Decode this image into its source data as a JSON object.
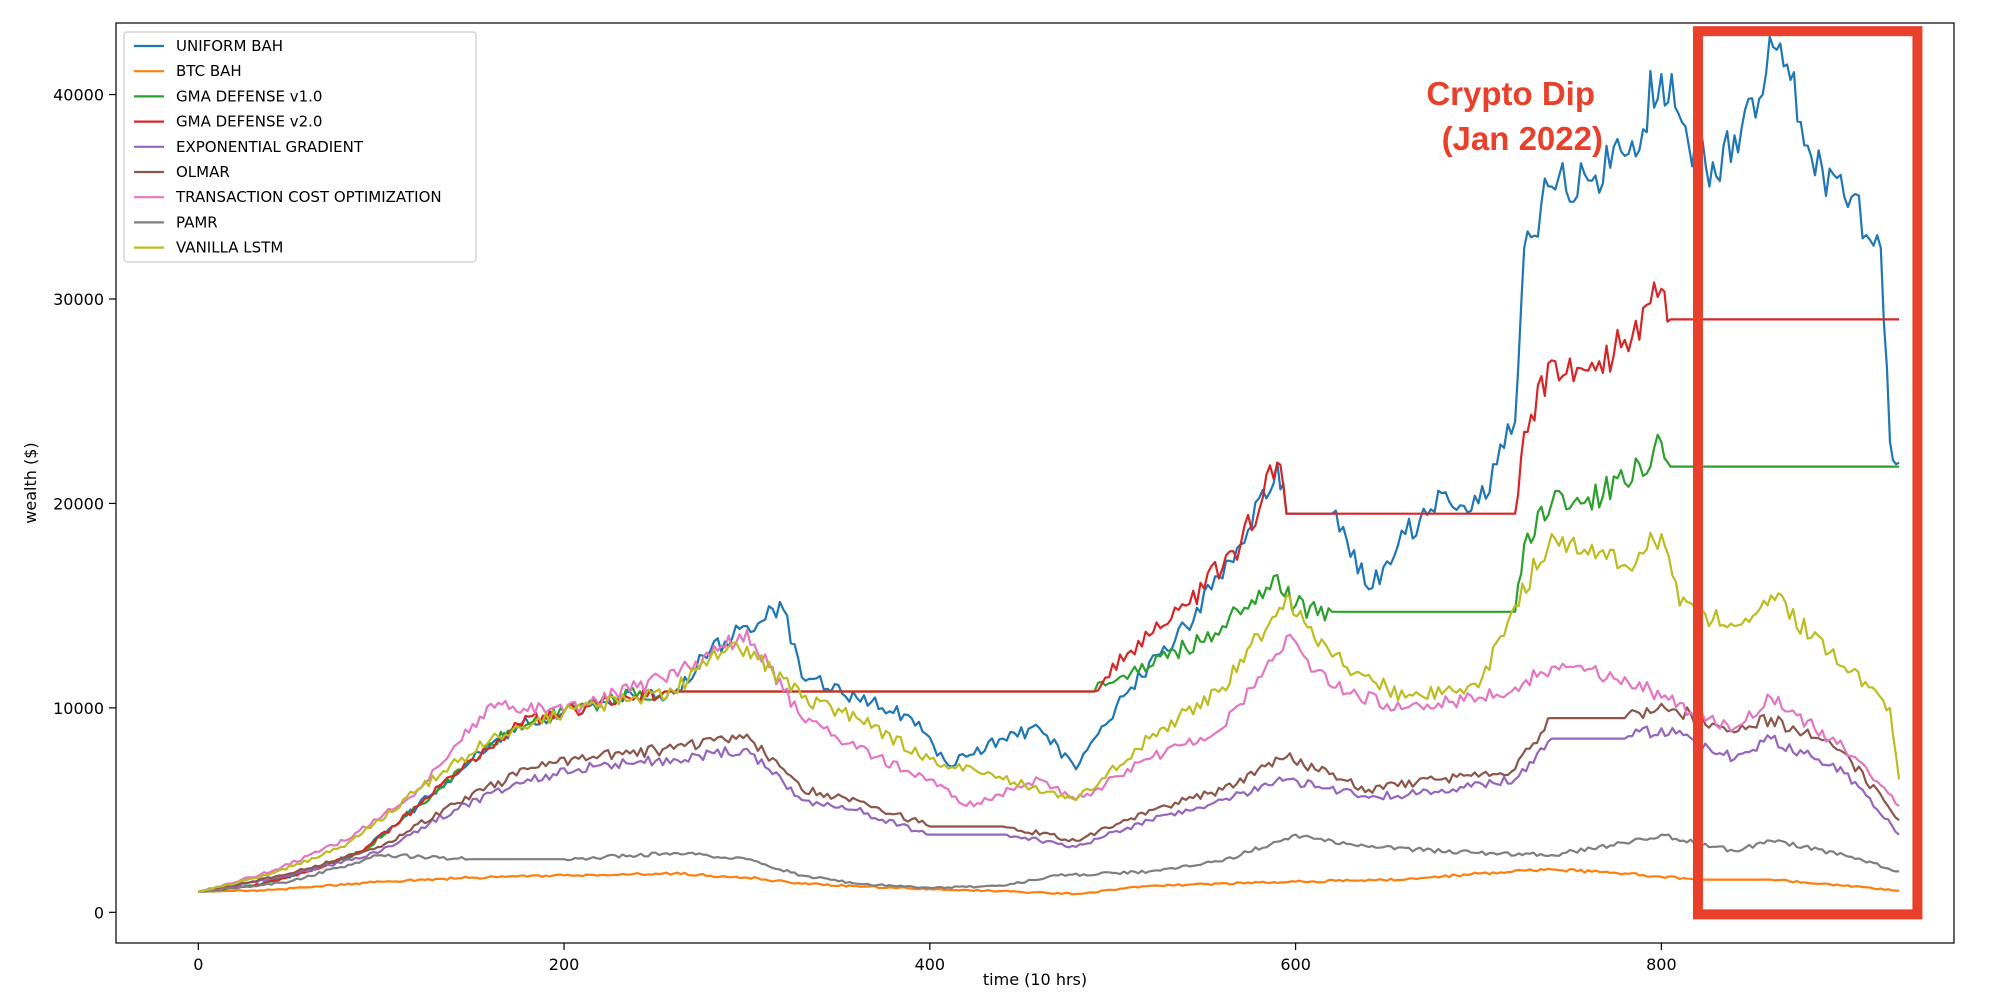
{
  "chart_data": {
    "type": "line",
    "xlabel": "time (10 hrs)",
    "ylabel": "wealth ($)",
    "xlim": [
      -45,
      960
    ],
    "ylim": [
      -1500,
      43500
    ],
    "xticks": [
      0,
      200,
      400,
      600,
      800
    ],
    "yticks": [
      0,
      10000,
      20000,
      30000,
      40000
    ],
    "grid": false,
    "legend_position": "top-left",
    "annotation": {
      "lines": [
        "Crypto Dip",
        "(Jan 2022)"
      ],
      "color": "#e8402a",
      "highlight_x_range": [
        820,
        940
      ],
      "highlight_y_range": [
        -100,
        43100
      ]
    },
    "x_end": 930,
    "series": [
      {
        "name": "UNIFORM BAH",
        "color": "#1f77b4",
        "points": [
          [
            0,
            1000
          ],
          [
            30,
            1300
          ],
          [
            60,
            2000
          ],
          [
            90,
            3000
          ],
          [
            120,
            5200
          ],
          [
            150,
            7500
          ],
          [
            175,
            9200
          ],
          [
            200,
            9800
          ],
          [
            230,
            10500
          ],
          [
            260,
            10700
          ],
          [
            280,
            12800
          ],
          [
            300,
            14000
          ],
          [
            320,
            14800
          ],
          [
            330,
            11500
          ],
          [
            360,
            10500
          ],
          [
            390,
            9500
          ],
          [
            410,
            7200
          ],
          [
            440,
            8500
          ],
          [
            460,
            9000
          ],
          [
            480,
            7000
          ],
          [
            510,
            11000
          ],
          [
            540,
            14000
          ],
          [
            570,
            18000
          ],
          [
            590,
            22000
          ],
          [
            595,
            19500
          ],
          [
            620,
            19500
          ],
          [
            640,
            15800
          ],
          [
            660,
            18500
          ],
          [
            680,
            20500
          ],
          [
            700,
            20000
          ],
          [
            720,
            24000
          ],
          [
            725,
            32500
          ],
          [
            740,
            35500
          ],
          [
            760,
            35800
          ],
          [
            780,
            37000
          ],
          [
            800,
            41000
          ],
          [
            815,
            37500
          ],
          [
            830,
            36000
          ],
          [
            840,
            38000
          ],
          [
            865,
            42500
          ],
          [
            880,
            37500
          ],
          [
            900,
            35000
          ],
          [
            920,
            32500
          ],
          [
            925,
            23000
          ],
          [
            930,
            22000
          ]
        ]
      },
      {
        "name": "BTC BAH",
        "color": "#ff7f0e",
        "points": [
          [
            0,
            1000
          ],
          [
            40,
            1100
          ],
          [
            100,
            1500
          ],
          [
            150,
            1700
          ],
          [
            200,
            1800
          ],
          [
            260,
            1900
          ],
          [
            300,
            1700
          ],
          [
            330,
            1400
          ],
          [
            380,
            1200
          ],
          [
            420,
            1100
          ],
          [
            480,
            900
          ],
          [
            520,
            1300
          ],
          [
            600,
            1500
          ],
          [
            660,
            1600
          ],
          [
            700,
            1900
          ],
          [
            740,
            2100
          ],
          [
            780,
            1900
          ],
          [
            820,
            1600
          ],
          [
            860,
            1600
          ],
          [
            900,
            1300
          ],
          [
            930,
            1050
          ]
        ]
      },
      {
        "name": "GMA DEFENSE v1.0",
        "color": "#2ca02c",
        "points": [
          [
            0,
            1000
          ],
          [
            30,
            1300
          ],
          [
            60,
            2000
          ],
          [
            90,
            3000
          ],
          [
            120,
            5200
          ],
          [
            150,
            7500
          ],
          [
            175,
            9200
          ],
          [
            200,
            9800
          ],
          [
            230,
            10500
          ],
          [
            255,
            10800
          ],
          [
            490,
            10800
          ],
          [
            520,
            12000
          ],
          [
            560,
            14000
          ],
          [
            590,
            16500
          ],
          [
            600,
            15000
          ],
          [
            620,
            14700
          ],
          [
            720,
            14700
          ],
          [
            725,
            18000
          ],
          [
            740,
            20000
          ],
          [
            760,
            20300
          ],
          [
            780,
            21000
          ],
          [
            800,
            23000
          ],
          [
            805,
            21800
          ],
          [
            930,
            21800
          ]
        ]
      },
      {
        "name": "GMA DEFENSE v2.0",
        "color": "#d62728",
        "points": [
          [
            0,
            1000
          ],
          [
            30,
            1300
          ],
          [
            60,
            2000
          ],
          [
            90,
            3000
          ],
          [
            120,
            5200
          ],
          [
            150,
            7500
          ],
          [
            175,
            9200
          ],
          [
            200,
            9800
          ],
          [
            230,
            10500
          ],
          [
            255,
            10800
          ],
          [
            490,
            10800
          ],
          [
            510,
            12800
          ],
          [
            540,
            15000
          ],
          [
            570,
            18000
          ],
          [
            590,
            22000
          ],
          [
            595,
            19500
          ],
          [
            620,
            19500
          ],
          [
            720,
            19500
          ],
          [
            725,
            23500
          ],
          [
            740,
            27000
          ],
          [
            760,
            26500
          ],
          [
            780,
            28000
          ],
          [
            800,
            30500
          ],
          [
            805,
            29000
          ],
          [
            930,
            29000
          ]
        ]
      },
      {
        "name": "EXPONENTIAL GRADIENT",
        "color": "#9467bd",
        "points": [
          [
            0,
            1000
          ],
          [
            50,
            1800
          ],
          [
            100,
            3000
          ],
          [
            140,
            5000
          ],
          [
            180,
            6500
          ],
          [
            220,
            7200
          ],
          [
            260,
            7500
          ],
          [
            300,
            8000
          ],
          [
            330,
            5500
          ],
          [
            360,
            5000
          ],
          [
            400,
            3800
          ],
          [
            440,
            3800
          ],
          [
            480,
            3200
          ],
          [
            520,
            4500
          ],
          [
            560,
            5500
          ],
          [
            595,
            6500
          ],
          [
            640,
            5600
          ],
          [
            680,
            6000
          ],
          [
            720,
            6500
          ],
          [
            740,
            8500
          ],
          [
            780,
            8500
          ],
          [
            800,
            9000
          ],
          [
            840,
            7500
          ],
          [
            860,
            8500
          ],
          [
            900,
            6800
          ],
          [
            930,
            3800
          ]
        ]
      },
      {
        "name": "OLMAR",
        "color": "#8c564b",
        "points": [
          [
            0,
            1000
          ],
          [
            50,
            1900
          ],
          [
            100,
            3200
          ],
          [
            140,
            5300
          ],
          [
            180,
            7000
          ],
          [
            220,
            7700
          ],
          [
            260,
            8000
          ],
          [
            300,
            8700
          ],
          [
            330,
            6000
          ],
          [
            360,
            5500
          ],
          [
            400,
            4200
          ],
          [
            440,
            4200
          ],
          [
            480,
            3500
          ],
          [
            520,
            5000
          ],
          [
            560,
            6000
          ],
          [
            595,
            7600
          ],
          [
            640,
            6000
          ],
          [
            680,
            6500
          ],
          [
            720,
            7000
          ],
          [
            740,
            9500
          ],
          [
            780,
            9500
          ],
          [
            800,
            10200
          ],
          [
            840,
            8800
          ],
          [
            860,
            9500
          ],
          [
            900,
            7800
          ],
          [
            930,
            4500
          ]
        ]
      },
      {
        "name": "TRANSACTION COST OPTIMIZATION",
        "color": "#e377c2",
        "points": [
          [
            0,
            1000
          ],
          [
            40,
            2000
          ],
          [
            80,
            3500
          ],
          [
            120,
            6000
          ],
          [
            160,
            10200
          ],
          [
            200,
            9800
          ],
          [
            240,
            11000
          ],
          [
            280,
            12500
          ],
          [
            300,
            13800
          ],
          [
            330,
            9500
          ],
          [
            360,
            8000
          ],
          [
            400,
            6500
          ],
          [
            420,
            5200
          ],
          [
            460,
            6500
          ],
          [
            480,
            5500
          ],
          [
            520,
            7500
          ],
          [
            560,
            9000
          ],
          [
            595,
            13500
          ],
          [
            620,
            11000
          ],
          [
            660,
            10000
          ],
          [
            700,
            10500
          ],
          [
            720,
            11000
          ],
          [
            740,
            12000
          ],
          [
            780,
            11500
          ],
          [
            800,
            10500
          ],
          [
            840,
            9000
          ],
          [
            860,
            10500
          ],
          [
            900,
            8000
          ],
          [
            930,
            5200
          ]
        ]
      },
      {
        "name": "PAMR",
        "color": "#7f7f7f",
        "points": [
          [
            0,
            1000
          ],
          [
            50,
            1500
          ],
          [
            100,
            2800
          ],
          [
            150,
            2600
          ],
          [
            200,
            2600
          ],
          [
            260,
            2900
          ],
          [
            300,
            2600
          ],
          [
            330,
            1800
          ],
          [
            360,
            1400
          ],
          [
            400,
            1200
          ],
          [
            440,
            1300
          ],
          [
            470,
            1800
          ],
          [
            520,
            2000
          ],
          [
            560,
            2500
          ],
          [
            600,
            3800
          ],
          [
            640,
            3200
          ],
          [
            700,
            2900
          ],
          [
            740,
            2800
          ],
          [
            780,
            3400
          ],
          [
            800,
            3800
          ],
          [
            840,
            3000
          ],
          [
            860,
            3500
          ],
          [
            900,
            2800
          ],
          [
            930,
            2000
          ]
        ]
      },
      {
        "name": "VANILLA LSTM",
        "color": "#bcbd22",
        "points": [
          [
            0,
            1000
          ],
          [
            40,
            1900
          ],
          [
            80,
            3200
          ],
          [
            120,
            6000
          ],
          [
            160,
            8500
          ],
          [
            200,
            9800
          ],
          [
            240,
            10500
          ],
          [
            260,
            10800
          ],
          [
            280,
            12500
          ],
          [
            300,
            13000
          ],
          [
            330,
            10500
          ],
          [
            360,
            9500
          ],
          [
            400,
            7500
          ],
          [
            440,
            6500
          ],
          [
            480,
            5500
          ],
          [
            520,
            8500
          ],
          [
            560,
            11000
          ],
          [
            595,
            15500
          ],
          [
            620,
            12500
          ],
          [
            660,
            10500
          ],
          [
            700,
            11000
          ],
          [
            720,
            15000
          ],
          [
            740,
            18500
          ],
          [
            760,
            17500
          ],
          [
            780,
            17000
          ],
          [
            800,
            18500
          ],
          [
            810,
            15000
          ],
          [
            840,
            14000
          ],
          [
            860,
            15500
          ],
          [
            900,
            12000
          ],
          [
            925,
            10000
          ],
          [
            930,
            6500
          ]
        ]
      }
    ]
  }
}
